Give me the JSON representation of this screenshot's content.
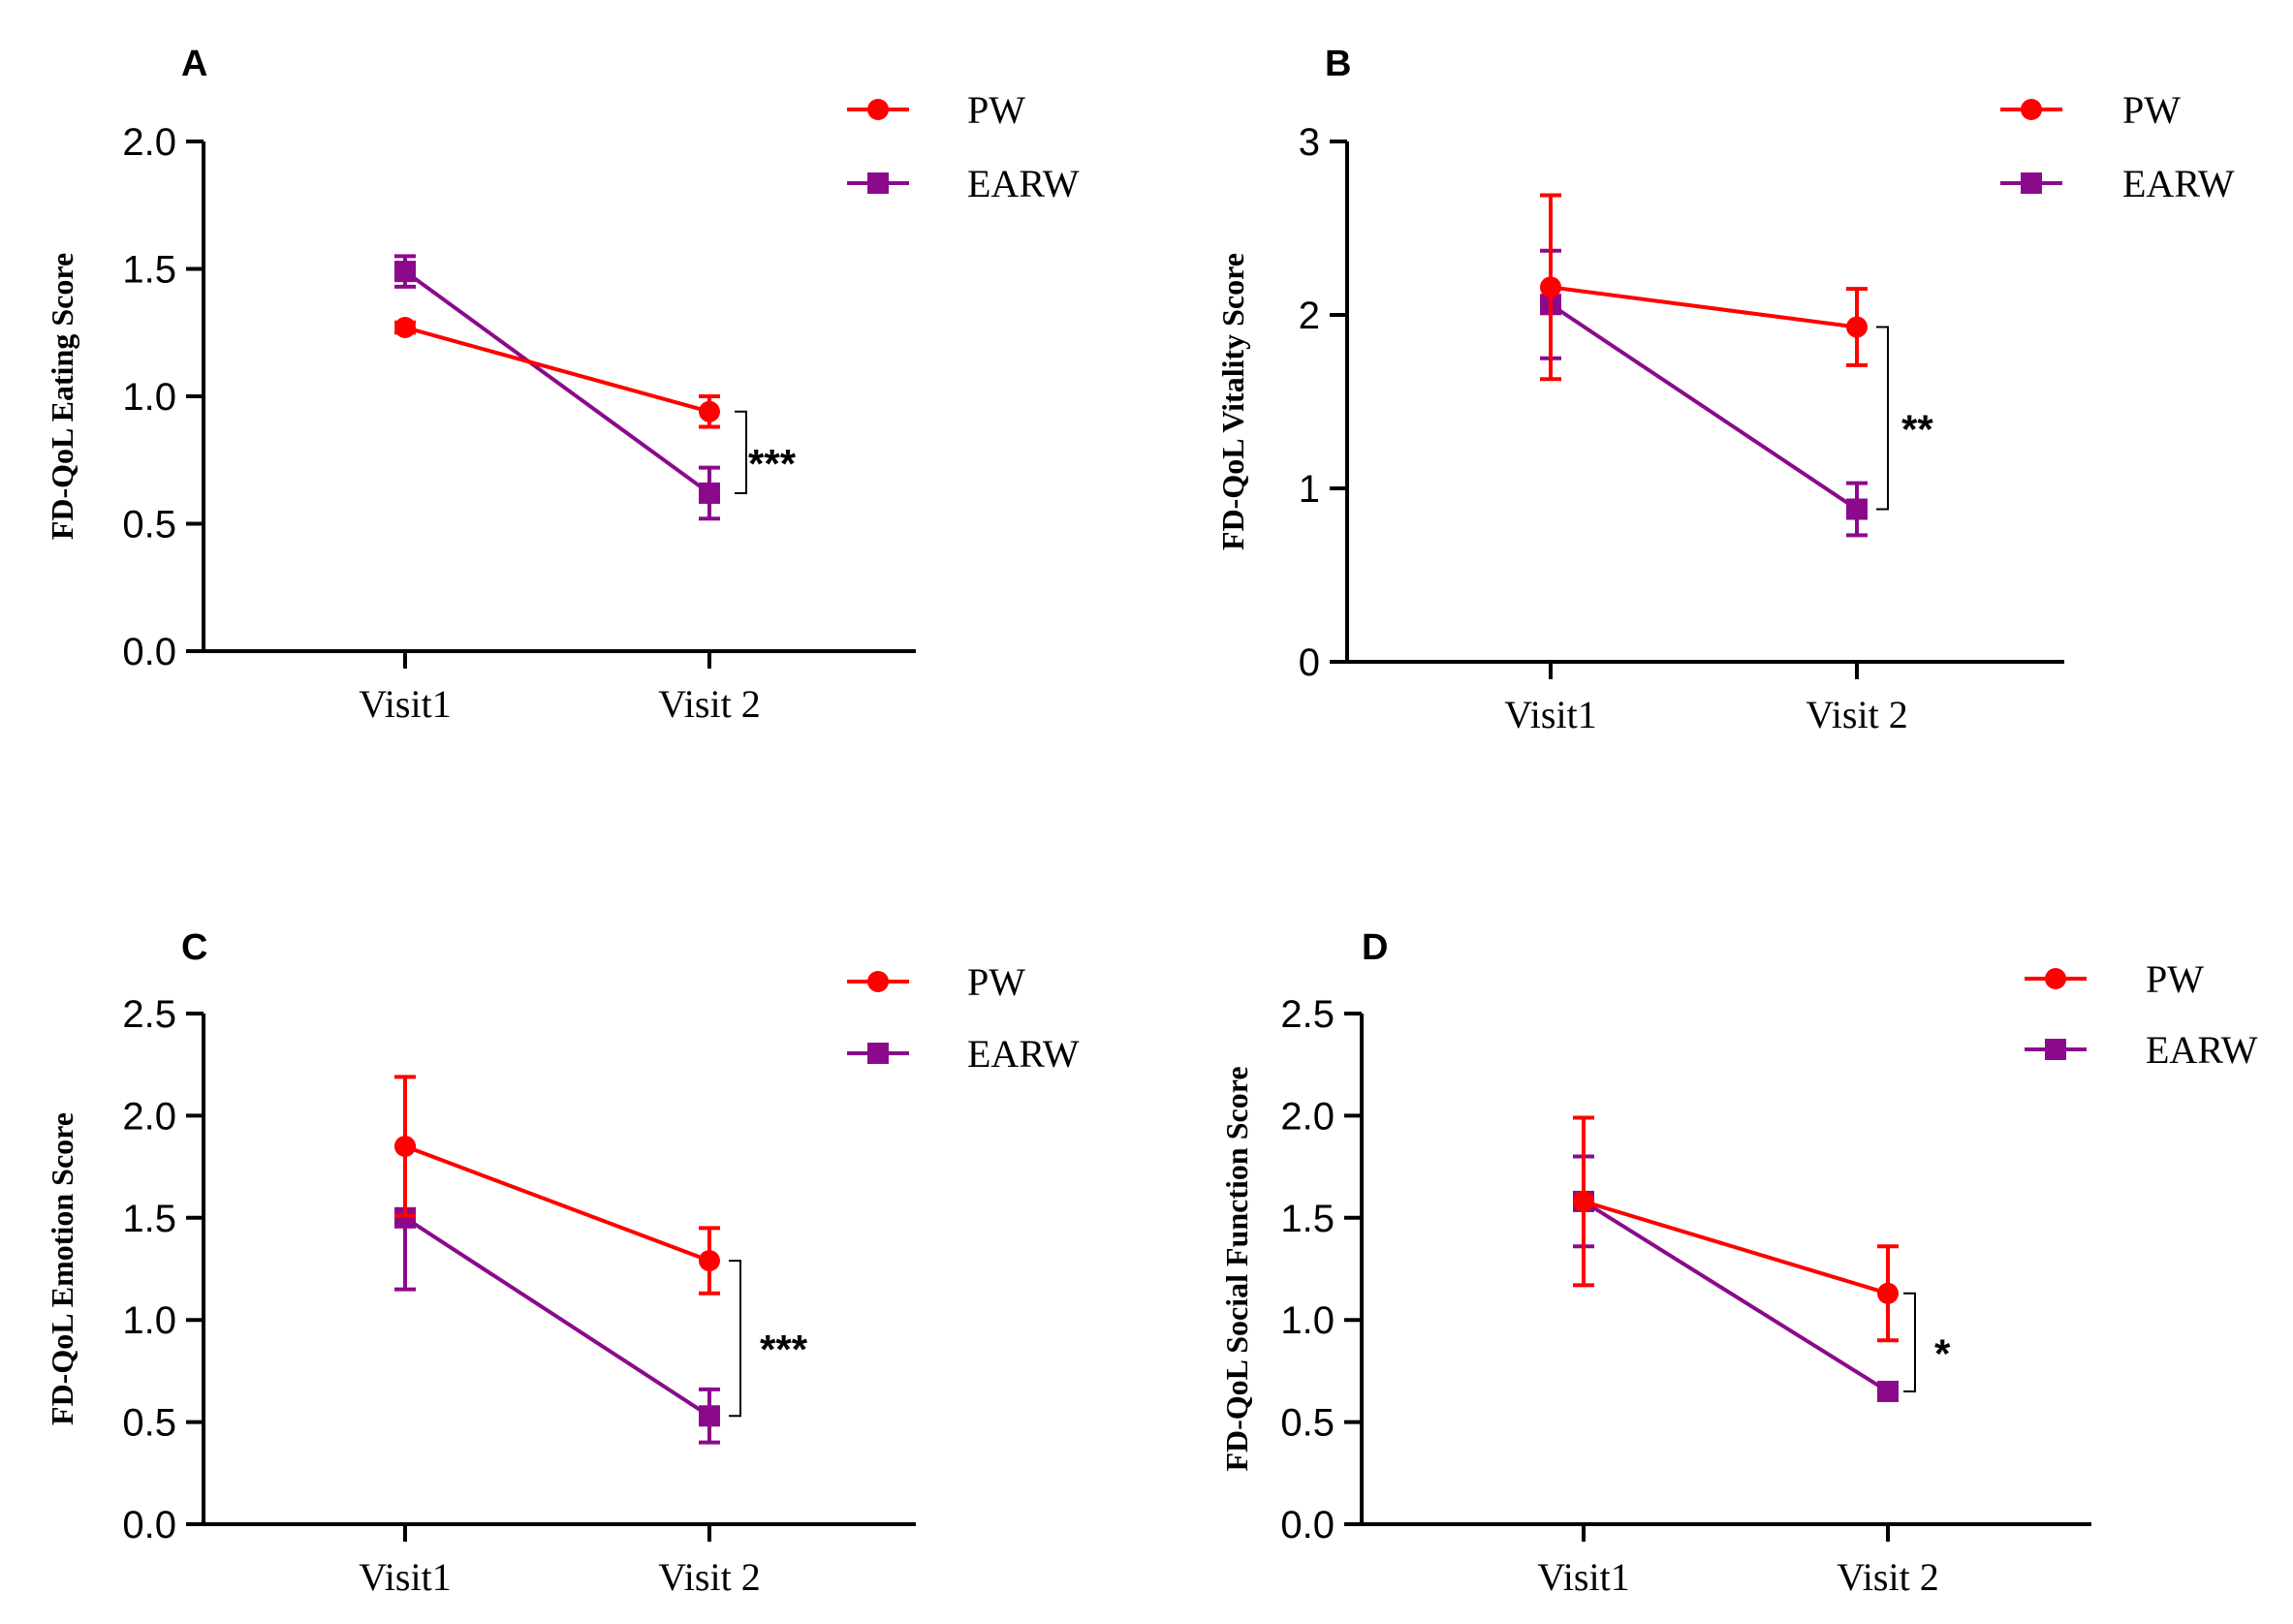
{
  "series_styles": {
    "PW": {
      "color": "#ff0000",
      "marker": "circle"
    },
    "EARW": {
      "color": "#8b0a8b",
      "marker": "square"
    }
  },
  "chart_data": [
    {
      "type": "line",
      "panel": "A",
      "ylabel": "FD-QoL Eating Score",
      "xlabel": "",
      "categories": [
        "Visit1",
        "Visit 2"
      ],
      "ylim": [
        0,
        2.0
      ],
      "yticks": [
        "0.0",
        "0.5",
        "1.0",
        "1.5",
        "2.0"
      ],
      "series": [
        {
          "name": "PW",
          "values": [
            1.27,
            0.94
          ],
          "errors": [
            0.02,
            0.06
          ]
        },
        {
          "name": "EARW",
          "values": [
            1.49,
            0.62
          ],
          "errors": [
            0.06,
            0.1
          ]
        }
      ],
      "significance": "***",
      "legend": "top-right"
    },
    {
      "type": "line",
      "panel": "B",
      "ylabel": "FD-QoL Vitality Score",
      "xlabel": "",
      "categories": [
        "Visit1",
        "Visit 2"
      ],
      "ylim": [
        0,
        3
      ],
      "yticks": [
        "0",
        "1",
        "2",
        "3"
      ],
      "series": [
        {
          "name": "PW",
          "values": [
            2.16,
            1.93
          ],
          "errors": [
            0.53,
            0.22
          ]
        },
        {
          "name": "EARW",
          "values": [
            2.06,
            0.88
          ],
          "errors": [
            0.31,
            0.15
          ]
        }
      ],
      "significance": "**",
      "legend": "top-right"
    },
    {
      "type": "line",
      "panel": "C",
      "ylabel": "FD-QoL Emotion Score",
      "xlabel": "",
      "categories": [
        "Visit1",
        "Visit 2"
      ],
      "ylim": [
        0,
        2.5
      ],
      "yticks": [
        "0.0",
        "0.5",
        "1.0",
        "1.5",
        "2.0",
        "2.5"
      ],
      "series": [
        {
          "name": "PW",
          "values": [
            1.85,
            1.29
          ],
          "errors": [
            0.34,
            0.16
          ]
        },
        {
          "name": "EARW",
          "values": [
            1.5,
            0.53
          ],
          "errors": [
            0.35,
            0.13
          ]
        }
      ],
      "significance": "***",
      "legend": "top-right"
    },
    {
      "type": "line",
      "panel": "D",
      "ylabel": "FD-QoL Social Function Score",
      "xlabel": "",
      "categories": [
        "Visit1",
        "Visit 2"
      ],
      "ylim": [
        0,
        2.5
      ],
      "yticks": [
        "0.0",
        "0.5",
        "1.0",
        "1.5",
        "2.0",
        "2.5"
      ],
      "series": [
        {
          "name": "PW",
          "values": [
            1.58,
            1.13
          ],
          "errors": [
            0.41,
            0.23
          ]
        },
        {
          "name": "EARW",
          "values": [
            1.58,
            0.65
          ],
          "errors": [
            0.22,
            0.04
          ]
        }
      ],
      "significance": "*",
      "legend": "top-right"
    }
  ]
}
